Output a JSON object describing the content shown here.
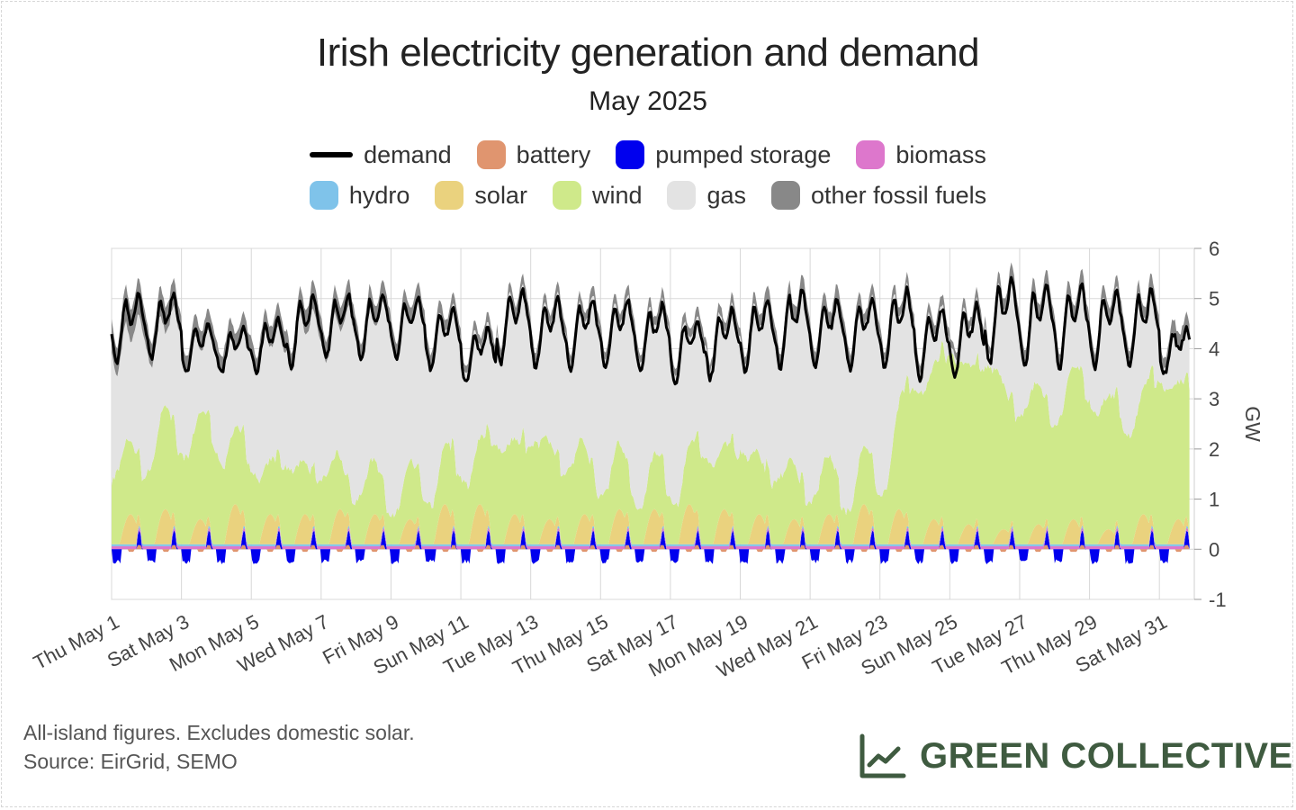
{
  "chart_data": {
    "type": "area",
    "title": "Irish electricity generation and demand",
    "subtitle": "May 2025",
    "ylabel": "GW",
    "ylim": [
      -1,
      6
    ],
    "yticks": [
      -1,
      0,
      1,
      2,
      3,
      4,
      5,
      6
    ],
    "xrange": [
      "2025-05-01",
      "2025-06-01"
    ],
    "xtick_labels": [
      "Thu May 1",
      "Sat May 3",
      "Mon May 5",
      "Wed May 7",
      "Fri May 9",
      "Sun May 11",
      "Tue May 13",
      "Thu May 15",
      "Sat May 17",
      "Mon May 19",
      "Wed May 21",
      "Fri May 23",
      "Sun May 25",
      "Tue May 27",
      "Thu May 29",
      "Sat May 31"
    ],
    "grid": true,
    "legend_position": "top",
    "series": [
      {
        "name": "demand",
        "kind": "line",
        "color": "#000000"
      },
      {
        "name": "battery",
        "kind": "area",
        "color": "#e0956f"
      },
      {
        "name": "pumped storage",
        "kind": "area",
        "color": "#0000ee"
      },
      {
        "name": "biomass",
        "kind": "area",
        "color": "#dd77cc"
      },
      {
        "name": "hydro",
        "kind": "area",
        "color": "#7fc3ea"
      },
      {
        "name": "solar",
        "kind": "area",
        "color": "#ead27e"
      },
      {
        "name": "wind",
        "kind": "area",
        "color": "#cfe98a"
      },
      {
        "name": "gas",
        "kind": "area",
        "color": "#e3e3e3"
      },
      {
        "name": "other fossil fuels",
        "kind": "area",
        "color": "#888888"
      }
    ],
    "daily_profile": {
      "day": [
        1,
        2,
        3,
        4,
        5,
        6,
        7,
        8,
        9,
        10,
        11,
        12,
        13,
        14,
        15,
        16,
        17,
        18,
        19,
        20,
        21,
        22,
        23,
        24,
        25,
        26,
        27,
        28,
        29,
        30,
        31
      ],
      "demand_peak_gw": [
        5.1,
        5.1,
        4.5,
        4.4,
        4.6,
        5.1,
        5.1,
        5.1,
        5.0,
        4.8,
        4.4,
        5.2,
        5.0,
        5.0,
        5.0,
        4.9,
        4.6,
        4.8,
        5.0,
        5.2,
        5.0,
        5.0,
        5.2,
        4.8,
        4.9,
        5.4,
        5.3,
        5.3,
        5.2,
        5.2,
        4.4
      ],
      "demand_min_gw": [
        3.7,
        3.8,
        3.5,
        3.5,
        3.5,
        3.6,
        3.8,
        3.8,
        3.8,
        3.6,
        3.3,
        3.7,
        3.6,
        3.6,
        3.6,
        3.5,
        3.3,
        3.4,
        3.5,
        3.6,
        3.6,
        3.6,
        3.6,
        3.4,
        3.4,
        3.7,
        3.6,
        3.6,
        3.6,
        3.6,
        3.5
      ],
      "wind_gw": [
        1.2,
        1.6,
        2.0,
        1.9,
        1.3,
        1.3,
        1.2,
        1.0,
        0.8,
        1.0,
        1.2,
        1.7,
        1.8,
        1.5,
        1.2,
        1.0,
        0.9,
        1.5,
        1.6,
        1.2,
        1.0,
        0.9,
        1.0,
        3.0,
        3.5,
        3.4,
        2.6,
        2.6,
        3.0,
        2.2,
        3.0
      ],
      "solar_peak_gw": [
        0.6,
        0.7,
        0.5,
        0.8,
        0.6,
        0.6,
        0.7,
        0.6,
        0.5,
        0.8,
        0.8,
        0.6,
        0.5,
        0.6,
        0.7,
        0.7,
        0.8,
        0.7,
        0.6,
        0.5,
        0.6,
        0.8,
        0.7,
        0.5,
        0.4,
        0.3,
        0.4,
        0.5,
        0.3,
        0.6,
        0.5
      ],
      "other_fossil_gw": [
        0.8,
        0.7,
        0.5,
        0.4,
        0.4,
        0.5,
        0.6,
        0.5,
        0.4,
        0.3,
        0.2,
        0.2,
        0.2,
        0.2,
        0.2,
        0.2,
        0.2,
        0.2,
        0.2,
        0.3,
        0.4,
        0.3,
        0.2,
        0.2,
        0.2,
        0.2,
        0.3,
        0.3,
        0.3,
        0.2,
        0.3
      ]
    }
  },
  "legend": {
    "row1": [
      "demand",
      "battery",
      "pumped storage",
      "biomass"
    ],
    "row2": [
      "hydro",
      "solar",
      "wind",
      "gas",
      "other fossil fuels"
    ]
  },
  "footer": {
    "note_line1": "All-island figures. Excludes domestic solar.",
    "note_line2": "Source: EirGrid, SEMO",
    "brand": "GREEN COLLECTIVE",
    "brand_color": "#3f5b40",
    "brand_icon": "line-chart-icon"
  }
}
